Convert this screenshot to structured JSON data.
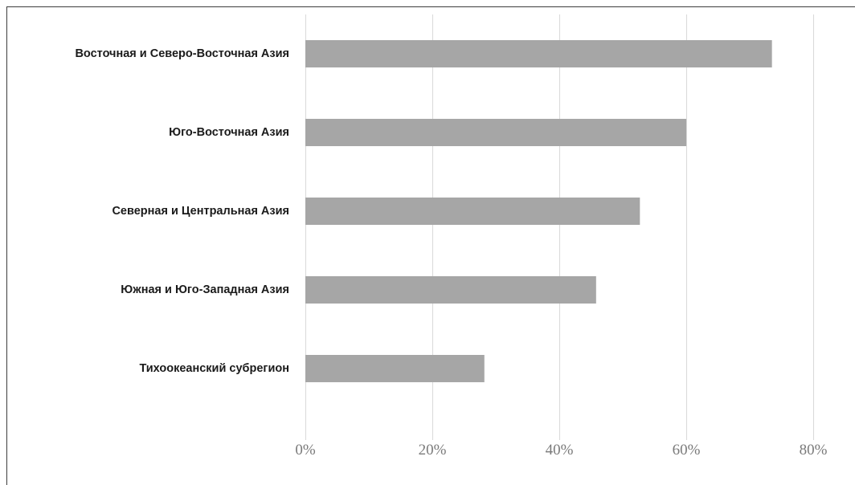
{
  "colors": {
    "bar": "#a6a6a6",
    "gridline": "#d9d9d9",
    "frame": "#3c3c3c",
    "category_text": "#1a1a1a",
    "tick_text": "#7a7a7a"
  },
  "chart_data": {
    "type": "bar",
    "orientation": "horizontal",
    "categories": [
      "Восточная и Северо-Восточная Азия",
      "Юго-Восточная Азия",
      "Северная и Центральная Азия",
      "Южная и Юго-Западная Азия",
      "Тихоокеанский субрегион"
    ],
    "values": [
      73.5,
      60,
      52.7,
      45.8,
      28.2
    ],
    "unit": "%",
    "xlim": [
      0,
      80
    ],
    "xticks": [
      0,
      20,
      40,
      60,
      80
    ],
    "xtick_labels": [
      "0%",
      "20%",
      "40%",
      "60%",
      "80%"
    ],
    "title": "",
    "xlabel": "",
    "ylabel": "",
    "grid": "vertical",
    "legend": "none"
  }
}
